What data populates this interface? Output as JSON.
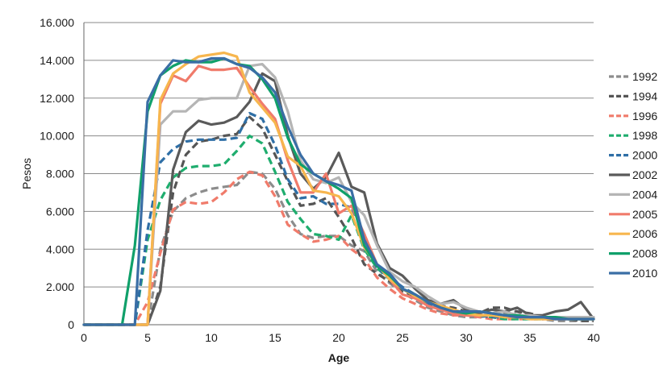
{
  "chart_data": {
    "type": "line",
    "xlabel": "Age",
    "ylabel": "Pesos",
    "xlim": [
      0,
      40
    ],
    "ylim": [
      0,
      16000
    ],
    "x_ticks": [
      0,
      5,
      10,
      15,
      20,
      25,
      30,
      35,
      40
    ],
    "y_ticks": [
      0,
      2000,
      4000,
      6000,
      8000,
      10000,
      12000,
      14000,
      16000
    ],
    "y_tick_labels": [
      "0",
      "2.000",
      "4.000",
      "6.000",
      "8.000",
      "10.000",
      "12.000",
      "14.000",
      "16.000"
    ],
    "grid": "horizontal",
    "legend_position": "right",
    "x": [
      0,
      1,
      2,
      3,
      4,
      5,
      6,
      7,
      8,
      9,
      10,
      11,
      12,
      13,
      14,
      15,
      16,
      17,
      18,
      19,
      20,
      21,
      22,
      23,
      24,
      25,
      26,
      27,
      28,
      29,
      30,
      31,
      32,
      33,
      34,
      35,
      36,
      37,
      38,
      39,
      40
    ],
    "series": [
      {
        "name": "1992",
        "color": "#8c8c8c",
        "dashed": true,
        "values": [
          0,
          0,
          0,
          0,
          0,
          0,
          4000,
          6000,
          6700,
          7000,
          7200,
          7300,
          7400,
          8100,
          8000,
          7200,
          5800,
          4800,
          4600,
          4700,
          4700,
          4200,
          3900,
          2800,
          2200,
          1700,
          1300,
          900,
          700,
          500,
          400,
          400,
          500,
          600,
          700,
          400,
          300,
          200,
          200,
          200,
          200
        ]
      },
      {
        "name": "1994",
        "color": "#555555",
        "dashed": true,
        "values": [
          0,
          0,
          0,
          0,
          0,
          0,
          2000,
          7000,
          9000,
          9700,
          9800,
          10000,
          10100,
          11000,
          10400,
          9000,
          7600,
          6300,
          6400,
          6700,
          5700,
          4600,
          3200,
          2700,
          2300,
          1800,
          1500,
          1200,
          1000,
          900,
          700,
          600,
          900,
          900,
          700,
          600,
          400,
          300,
          300,
          200,
          200
        ]
      },
      {
        "name": "1996",
        "color": "#f07b6b",
        "dashed": true,
        "values": [
          0,
          0,
          0,
          0,
          0,
          1200,
          3800,
          6100,
          6500,
          6400,
          6500,
          7000,
          7700,
          8100,
          7900,
          6800,
          5300,
          4800,
          4400,
          4500,
          4700,
          4000,
          3500,
          2500,
          1900,
          1400,
          1100,
          800,
          600,
          500,
          500,
          400,
          300,
          300,
          300,
          300,
          300,
          400,
          400,
          400,
          400
        ]
      },
      {
        "name": "1998",
        "color": "#1fad6e",
        "dashed": true,
        "values": [
          0,
          0,
          0,
          0,
          0,
          4500,
          6600,
          7800,
          8300,
          8400,
          8400,
          8500,
          9200,
          10000,
          9600,
          8100,
          6500,
          5600,
          4800,
          4700,
          4500,
          5800,
          4000,
          3000,
          2400,
          1900,
          1500,
          1100,
          900,
          700,
          600,
          500,
          400,
          300,
          300,
          300,
          300,
          400,
          300,
          300,
          300
        ]
      },
      {
        "name": "2000",
        "color": "#2f6fa6",
        "dashed": true,
        "values": [
          0,
          0,
          0,
          0,
          0,
          5000,
          8600,
          9300,
          9700,
          9800,
          9800,
          9800,
          9900,
          11200,
          10900,
          9500,
          7700,
          6700,
          6800,
          6400,
          6400,
          6200,
          4800,
          3000,
          2500,
          2000,
          1600,
          1100,
          800,
          700,
          600,
          500,
          400,
          400,
          400,
          400,
          300,
          300,
          300,
          300,
          300
        ]
      },
      {
        "name": "2002",
        "color": "#5a5a5a",
        "dashed": false,
        "values": [
          0,
          0,
          0,
          0,
          0,
          0,
          1800,
          8200,
          10200,
          10800,
          10600,
          10700,
          11000,
          11800,
          13300,
          12900,
          10000,
          8000,
          7200,
          7800,
          9100,
          7300,
          7000,
          4300,
          3000,
          2600,
          1900,
          1300,
          1100,
          1300,
          800,
          600,
          800,
          700,
          900,
          500,
          500,
          700,
          800,
          1200,
          300
        ]
      },
      {
        "name": "2004",
        "color": "#b5b5b5",
        "dashed": false,
        "values": [
          0,
          0,
          0,
          0,
          0,
          0,
          10600,
          11300,
          11300,
          11900,
          12000,
          12000,
          12000,
          13700,
          13800,
          13100,
          11300,
          8700,
          7700,
          7500,
          7800,
          6500,
          5800,
          4200,
          2800,
          2300,
          2000,
          1500,
          1100,
          1200,
          900,
          700,
          600,
          700,
          500,
          500,
          400,
          400,
          400,
          400,
          400
        ]
      },
      {
        "name": "2005",
        "color": "#f07b6b",
        "dashed": false,
        "values": [
          0,
          0,
          0,
          0,
          0,
          0,
          11700,
          13200,
          12900,
          13700,
          13500,
          13500,
          13600,
          12600,
          11700,
          10900,
          8700,
          7000,
          7000,
          8000,
          5900,
          6300,
          4800,
          3200,
          2400,
          1600,
          1400,
          1000,
          800,
          600,
          500,
          500,
          500,
          400,
          400,
          400,
          300,
          300,
          300,
          300,
          300
        ]
      },
      {
        "name": "2006",
        "color": "#f7b64e",
        "dashed": false,
        "values": [
          0,
          0,
          0,
          0,
          0,
          0,
          11900,
          13300,
          13800,
          14200,
          14300,
          14400,
          14200,
          12300,
          11500,
          10700,
          8900,
          8400,
          7100,
          7000,
          6800,
          5900,
          4100,
          3200,
          2400,
          1900,
          1500,
          1200,
          1000,
          800,
          600,
          500,
          500,
          400,
          400,
          300,
          300,
          300,
          300,
          300,
          300
        ]
      },
      {
        "name": "2008",
        "color": "#10a06a",
        "dashed": false,
        "values": [
          0,
          0,
          0,
          0,
          4200,
          11300,
          13200,
          13700,
          14000,
          13900,
          13900,
          14100,
          13800,
          13700,
          13000,
          12000,
          9900,
          8500,
          8000,
          7600,
          7200,
          6700,
          4200,
          3100,
          2600,
          1900,
          1600,
          1200,
          900,
          700,
          600,
          700,
          600,
          500,
          500,
          400,
          400,
          400,
          300,
          300,
          300
        ]
      },
      {
        "name": "2010",
        "color": "#3a6ea5",
        "dashed": false,
        "values": [
          0,
          0,
          0,
          0,
          0,
          11800,
          13200,
          14000,
          13900,
          13900,
          14100,
          14100,
          13800,
          13600,
          13100,
          12300,
          10500,
          9000,
          8000,
          7600,
          7400,
          7100,
          4500,
          3200,
          2700,
          1900,
          1600,
          1200,
          900,
          700,
          700,
          700,
          600,
          500,
          400,
          400,
          400,
          300,
          300,
          300,
          300
        ]
      }
    ]
  }
}
